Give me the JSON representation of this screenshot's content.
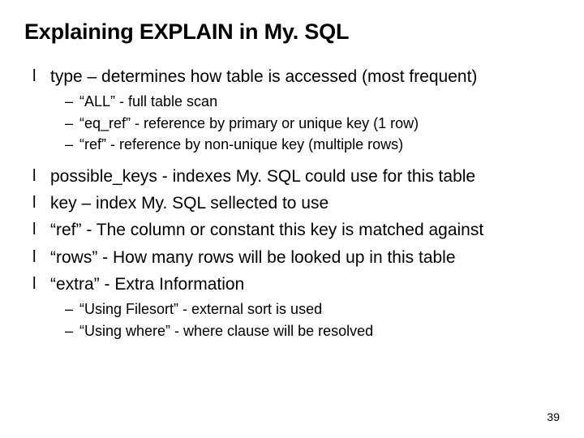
{
  "title": "Explaining EXPLAIN in My. SQL",
  "bullet_char": "l",
  "dash_char": "–",
  "items": {
    "i0": "type – determines how table is accessed (most frequent)",
    "i0_sub": {
      "s0": "“ALL”  - full table scan",
      "s1": "“eq_ref”  - reference by primary or unique key (1 row)",
      "s2": "“ref”  -  reference by non-unique key (multiple rows)"
    },
    "i1": "possible_keys  -  indexes My. SQL could use for this table",
    "i2": "key – index My. SQL sellected to use",
    "i3": "“ref”  - The column or constant this key is matched against",
    "i4": "“rows” - How many rows will be looked up in this table",
    "i5": "“extra” - Extra Information",
    "i5_sub": {
      "s0": "“Using Filesort”   -  external sort is used",
      "s1": "“Using where”  - where clause will be resolved"
    }
  },
  "page_number": "39",
  "colors": {
    "text": "#000000",
    "background": "#ffffff"
  }
}
